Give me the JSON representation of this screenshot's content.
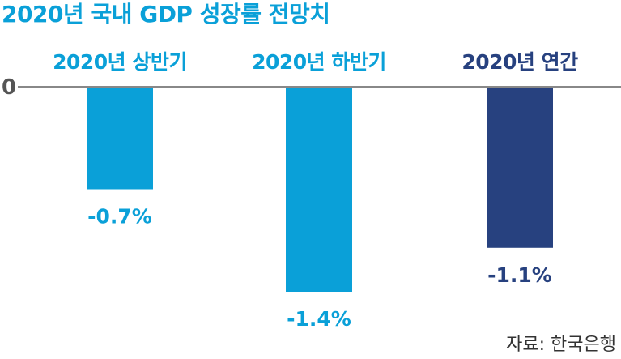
{
  "title": "2020년 국내 GDP 성장률 전망치",
  "source": "자료: 한국은행",
  "colors": {
    "accent": "#0aa0d8",
    "dark": "#27417f",
    "axis": "#888888"
  },
  "chart_data": {
    "type": "bar",
    "title": "2020년 국내 GDP 성장률 전망치",
    "categories": [
      "2020년 상반기",
      "2020년 하반기",
      "2020년 연간"
    ],
    "values": [
      -0.7,
      -1.4,
      -1.1
    ],
    "value_labels": [
      "-0.7%",
      "-1.4%",
      "-1.1%"
    ],
    "bar_colors": [
      "#0aa0d8",
      "#0aa0d8",
      "#27417f"
    ],
    "zero_label": "0",
    "xlabel": "",
    "ylabel": "",
    "ylim": [
      -1.4,
      0
    ],
    "grid": false,
    "legend": "none"
  }
}
